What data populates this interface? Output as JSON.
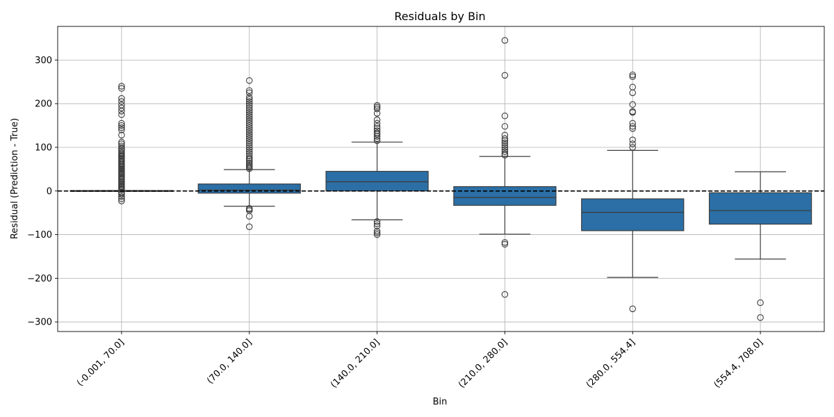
{
  "chart_data": {
    "type": "box",
    "title": "Residuals by Bin",
    "xlabel": "Bin",
    "ylabel": "Residual (Prediction - True)",
    "ylim": [
      -322,
      377
    ],
    "yticks": [
      -300,
      -200,
      -100,
      0,
      100,
      200,
      300
    ],
    "ytick_labels": [
      "−300",
      "−200",
      "−100",
      "0",
      "100",
      "200",
      "300"
    ],
    "grid": true,
    "reference_line": {
      "y": 0,
      "style": "dashed",
      "color": "#000000"
    },
    "box_color": "#2b6fa6",
    "categories": [
      "(-0.001, 70.0]",
      "(70.0, 140.0]",
      "(140.0, 210.0]",
      "(210.0, 280.0]",
      "(280.0, 554.4]",
      "(554.4, 708.0]"
    ],
    "boxes": [
      {
        "category": "(-0.001, 70.0]",
        "q1": -1,
        "median": 0,
        "q3": 1,
        "whisker_low": -1,
        "whisker_high": 1,
        "outliers": [
          240,
          235,
          212,
          205,
          197,
          190,
          183,
          175,
          155,
          150,
          145,
          140,
          128,
          112,
          108,
          103,
          98,
          95,
          92,
          88,
          85,
          82,
          80,
          78,
          75,
          73,
          70,
          68,
          65,
          62,
          60,
          57,
          55,
          52,
          50,
          47,
          45,
          42,
          40,
          38,
          35,
          32,
          30,
          27,
          25,
          22,
          20,
          17,
          15,
          12,
          10,
          8,
          5,
          3,
          -3,
          -5,
          -8,
          -13,
          -18,
          -23
        ]
      },
      {
        "category": "(70.0, 140.0]",
        "q1": -5,
        "median": 2,
        "q3": 16,
        "whisker_low": -35,
        "whisker_high": 49,
        "outliers": [
          253,
          230,
          225,
          215,
          210,
          205,
          200,
          195,
          190,
          185,
          180,
          175,
          170,
          165,
          160,
          155,
          150,
          145,
          140,
          135,
          130,
          125,
          120,
          115,
          110,
          105,
          100,
          95,
          90,
          85,
          80,
          75,
          72,
          68,
          64,
          60,
          57,
          54,
          51,
          -40,
          -42,
          -45,
          -58,
          -82
        ]
      },
      {
        "category": "(140.0, 210.0]",
        "q1": 0,
        "median": 21,
        "q3": 45,
        "whisker_low": -66,
        "whisker_high": 112,
        "outliers": [
          196,
          192,
          188,
          178,
          163,
          155,
          148,
          143,
          138,
          133,
          130,
          125,
          120,
          115,
          -70,
          -75,
          -80,
          -92,
          -96,
          -100
        ]
      },
      {
        "category": "(210.0, 280.0]",
        "q1": -33,
        "median": -15,
        "q3": 10,
        "whisker_low": -99,
        "whisker_high": 79,
        "outliers": [
          345,
          265,
          172,
          148,
          128,
          120,
          115,
          110,
          105,
          100,
          95,
          90,
          85,
          82,
          -118,
          -122,
          -237
        ]
      },
      {
        "category": "(280.0, 554.4]",
        "q1": -91,
        "median": -49,
        "q3": -18,
        "whisker_low": -198,
        "whisker_high": 93,
        "outliers": [
          266,
          262,
          238,
          225,
          198,
          182,
          180,
          155,
          148,
          143,
          117,
          108,
          100,
          -270
        ]
      },
      {
        "category": "(554.4, 708.0]",
        "q1": -76,
        "median": -45,
        "q3": -4,
        "whisker_low": -156,
        "whisker_high": 44,
        "outliers": [
          -256,
          -290
        ]
      }
    ]
  }
}
